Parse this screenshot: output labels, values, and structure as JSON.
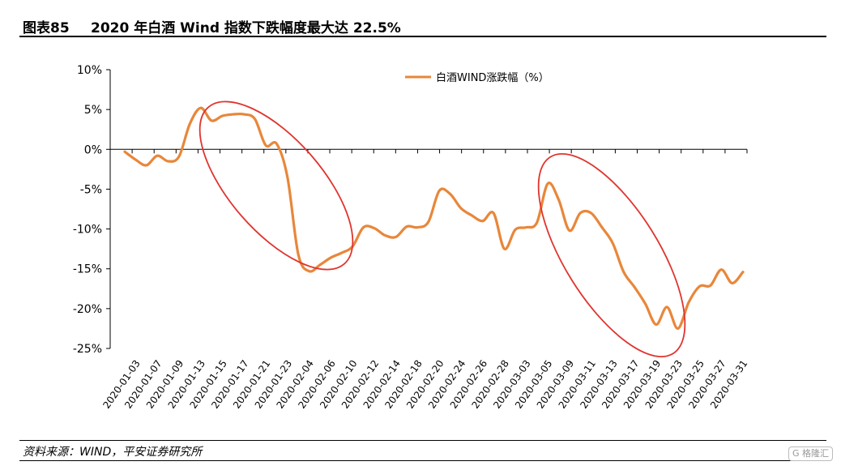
{
  "figure": {
    "number": "图表85",
    "title": "2020 年白酒 Wind 指数下跌幅度最大达 22.5%",
    "source": "资料来源：WIND，平安证券研究所",
    "watermark": "格隆汇"
  },
  "chart_data": {
    "type": "line",
    "title": "",
    "xlabel": "",
    "ylabel": "",
    "ylim": [
      -25,
      10
    ],
    "yticks": [
      10,
      5,
      0,
      -5,
      -10,
      -15,
      -20,
      -25
    ],
    "ytick_labels": [
      "10%",
      "5%",
      "0%",
      "-5%",
      "-10%",
      "-15%",
      "-20%",
      "-25%"
    ],
    "grid": false,
    "legend_position": "top-center",
    "x_tick_labels": [
      "2020-01-03",
      "2020-01-07",
      "2020-01-09",
      "2020-01-13",
      "2020-01-15",
      "2020-01-17",
      "2020-01-21",
      "2020-01-23",
      "2020-02-04",
      "2020-02-06",
      "2020-02-10",
      "2020-02-12",
      "2020-02-14",
      "2020-02-18",
      "2020-02-20",
      "2020-02-24",
      "2020-02-26",
      "2020-02-28",
      "2020-03-03",
      "2020-03-05",
      "2020-03-09",
      "2020-03-11",
      "2020-03-13",
      "2020-03-17",
      "2020-03-19",
      "2020-03-23",
      "2020-03-25",
      "2020-03-27",
      "2020-03-31"
    ],
    "x": [
      "2020-01-02",
      "2020-01-03",
      "2020-01-06",
      "2020-01-07",
      "2020-01-08",
      "2020-01-09",
      "2020-01-10",
      "2020-01-13",
      "2020-01-14",
      "2020-01-15",
      "2020-01-16",
      "2020-01-17",
      "2020-01-20",
      "2020-01-21",
      "2020-01-22",
      "2020-01-23",
      "2020-02-03",
      "2020-02-04",
      "2020-02-05",
      "2020-02-06",
      "2020-02-07",
      "2020-02-10",
      "2020-02-11",
      "2020-02-12",
      "2020-02-13",
      "2020-02-14",
      "2020-02-17",
      "2020-02-18",
      "2020-02-19",
      "2020-02-20",
      "2020-02-21",
      "2020-02-24",
      "2020-02-25",
      "2020-02-26",
      "2020-02-27",
      "2020-02-28",
      "2020-03-02",
      "2020-03-03",
      "2020-03-04",
      "2020-03-05",
      "2020-03-06",
      "2020-03-09",
      "2020-03-10",
      "2020-03-11",
      "2020-03-12",
      "2020-03-13",
      "2020-03-16",
      "2020-03-17",
      "2020-03-18",
      "2020-03-19",
      "2020-03-20",
      "2020-03-23",
      "2020-03-24",
      "2020-03-25",
      "2020-03-26",
      "2020-03-27",
      "2020-03-30",
      "2020-03-31"
    ],
    "series": [
      {
        "name": "白酒WIND涨跌幅（%）",
        "color": "#E8873A",
        "values": [
          -0.3,
          -1.3,
          -2.0,
          -0.8,
          -1.5,
          -0.9,
          3.2,
          5.2,
          3.6,
          4.2,
          4.4,
          4.4,
          3.8,
          0.5,
          0.7,
          -3.5,
          -13.2,
          -15.3,
          -14.5,
          -13.6,
          -13.0,
          -12.2,
          -9.8,
          -9.9,
          -10.8,
          -11.0,
          -9.7,
          -9.8,
          -9.1,
          -5.2,
          -5.6,
          -7.4,
          -8.3,
          -9.0,
          -8.0,
          -12.5,
          -10.1,
          -9.8,
          -9.2,
          -4.3,
          -6.3,
          -10.2,
          -8.0,
          -8.0,
          -9.8,
          -11.8,
          -15.4,
          -17.3,
          -19.4,
          -22.0,
          -19.8,
          -22.5,
          -19.2,
          -17.2,
          -17.1,
          -15.1,
          -16.8,
          -15.4
        ]
      }
    ],
    "annotations": [
      {
        "type": "ellipse",
        "color": "#E0342E",
        "around": "2020-01-15 to 2020-02-10"
      },
      {
        "type": "ellipse",
        "color": "#E0342E",
        "around": "2020-03-05 to 2020-03-23"
      }
    ]
  }
}
